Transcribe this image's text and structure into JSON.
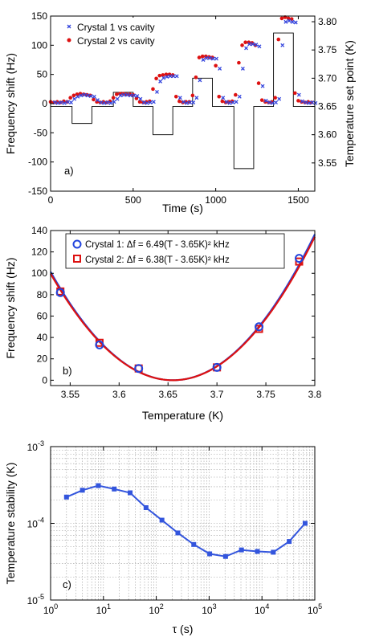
{
  "chart_data": [
    {
      "type": "scatter",
      "panel_label": "a)",
      "xlabel": "Time (s)",
      "ylabel": "Frequency shift (Hz)",
      "y2label": "Temperature set point (K)",
      "xlim": [
        0,
        1600
      ],
      "ylim": [
        -150,
        150
      ],
      "y2lim": [
        3.5,
        3.81
      ],
      "xticks": [
        0,
        500,
        1000,
        1500
      ],
      "yticks": [
        -150,
        -100,
        -50,
        0,
        50,
        100,
        150
      ],
      "y2ticks": [
        3.55,
        3.6,
        3.65,
        3.7,
        3.75,
        3.8
      ],
      "legend_position": "top-left",
      "series": [
        {
          "name": "Crystal 1 vs cavity",
          "marker": "x",
          "color": "#3344dd",
          "x": [
            0,
            20,
            40,
            60,
            80,
            100,
            120,
            140,
            160,
            180,
            200,
            220,
            240,
            260,
            280,
            300,
            320,
            340,
            360,
            380,
            400,
            420,
            440,
            460,
            480,
            500,
            520,
            540,
            560,
            580,
            600,
            620,
            640,
            660,
            680,
            700,
            720,
            740,
            760,
            780,
            800,
            820,
            840,
            860,
            880,
            900,
            920,
            940,
            960,
            980,
            1000,
            1020,
            1040,
            1060,
            1080,
            1100,
            1120,
            1140,
            1160,
            1180,
            1200,
            1220,
            1240,
            1260,
            1280,
            1300,
            1320,
            1340,
            1360,
            1380,
            1400,
            1420,
            1440,
            1460,
            1480,
            1500,
            1520,
            1540,
            1560,
            1580
          ],
          "y": [
            2,
            1,
            2,
            1,
            3,
            2,
            8,
            12,
            14,
            15,
            14,
            13,
            12,
            6,
            2,
            1,
            2,
            1,
            3,
            8,
            14,
            15,
            15,
            14,
            14,
            13,
            8,
            2,
            1,
            2,
            3,
            20,
            38,
            44,
            46,
            47,
            47,
            47,
            10,
            3,
            1,
            2,
            2,
            10,
            40,
            75,
            78,
            78,
            77,
            77,
            60,
            10,
            3,
            1,
            2,
            3,
            12,
            60,
            95,
            102,
            102,
            101,
            98,
            30,
            5,
            2,
            1,
            2,
            8,
            100,
            140,
            142,
            140,
            139,
            15,
            4,
            2,
            1,
            2,
            1
          ]
        },
        {
          "name": "Crystal 2 vs cavity",
          "marker": "dot",
          "color": "#dd1111",
          "x": [
            0,
            20,
            40,
            60,
            80,
            100,
            120,
            140,
            160,
            180,
            200,
            220,
            240,
            260,
            280,
            300,
            320,
            340,
            360,
            380,
            400,
            420,
            440,
            460,
            480,
            500,
            520,
            540,
            560,
            580,
            600,
            620,
            640,
            660,
            680,
            700,
            720,
            740,
            760,
            780,
            800,
            820,
            840,
            860,
            880,
            900,
            920,
            940,
            960,
            980,
            1000,
            1020,
            1040,
            1060,
            1080,
            1100,
            1120,
            1140,
            1160,
            1180,
            1200,
            1220,
            1240,
            1260,
            1280,
            1300,
            1320,
            1340,
            1360,
            1380,
            1400,
            1420,
            1440,
            1460,
            1480,
            1500,
            1520,
            1540,
            1560,
            1580
          ],
          "y": [
            3,
            2,
            3,
            2,
            4,
            3,
            10,
            14,
            16,
            17,
            16,
            15,
            14,
            7,
            3,
            2,
            3,
            2,
            4,
            10,
            16,
            17,
            17,
            16,
            16,
            15,
            9,
            3,
            2,
            3,
            4,
            25,
            43,
            48,
            49,
            50,
            50,
            49,
            12,
            4,
            2,
            3,
            3,
            14,
            45,
            79,
            81,
            81,
            80,
            79,
            65,
            12,
            4,
            2,
            3,
            4,
            15,
            70,
            100,
            105,
            105,
            104,
            100,
            35,
            6,
            3,
            2,
            3,
            10,
            110,
            146,
            148,
            146,
            145,
            18,
            5,
            3,
            2,
            3,
            2
          ]
        },
        {
          "name": "Temperature set point",
          "type": "step",
          "color": "#000000",
          "axis": "y2",
          "x": [
            0,
            130,
            250,
            380,
            500,
            620,
            740,
            860,
            980,
            1110,
            1230,
            1350,
            1470,
            1600
          ],
          "y": [
            3.65,
            3.62,
            3.65,
            3.675,
            3.65,
            3.6,
            3.65,
            3.7,
            3.65,
            3.54,
            3.65,
            3.78,
            3.65,
            3.65
          ]
        }
      ]
    },
    {
      "type": "scatter",
      "panel_label": "b)",
      "xlabel": "Temperature (K)",
      "ylabel": "Frequency shift (Hz)",
      "xlim": [
        3.53,
        3.8
      ],
      "ylim": [
        -5,
        140
      ],
      "xticks": [
        3.55,
        3.6,
        3.65,
        3.7,
        3.75,
        3.8
      ],
      "yticks": [
        0,
        20,
        40,
        60,
        80,
        100,
        120,
        140
      ],
      "legend_position": "top-left",
      "series": [
        {
          "name": "Crystal 1: Δf = 6.49(T - 3.65K)² kHz",
          "marker": "circle",
          "color": "#2244dd",
          "x": [
            3.54,
            3.58,
            3.62,
            3.7,
            3.743,
            3.784
          ],
          "y": [
            82,
            33,
            11,
            12,
            50,
            114
          ],
          "fit_coef": 6490
        },
        {
          "name": "Crystal 2: Δf = 6.38(T - 3.65K)² kHz",
          "marker": "square",
          "color": "#dd1111",
          "x": [
            3.54,
            3.58,
            3.62,
            3.7,
            3.743,
            3.784
          ],
          "y": [
            83,
            35,
            11,
            12,
            48,
            111
          ],
          "fit_coef": 6380
        }
      ]
    },
    {
      "type": "line",
      "panel_label": "c)",
      "xlabel": "τ (s)",
      "ylabel": "Temperature stability (K)",
      "xscale": "log",
      "yscale": "log",
      "xlim": [
        1,
        100000
      ],
      "ylim": [
        1e-05,
        0.001
      ],
      "xtick_labels": [
        [
          "10",
          "0"
        ],
        [
          "10",
          "1"
        ],
        [
          "10",
          "2"
        ],
        [
          "10",
          "3"
        ],
        [
          "10",
          "4"
        ],
        [
          "10",
          "5"
        ]
      ],
      "ytick_labels": [
        [
          "10",
          "-5"
        ],
        [
          "10",
          "-4"
        ],
        [
          "10",
          "-3"
        ]
      ],
      "grid": true,
      "series": [
        {
          "color": "#3355dd",
          "marker": "square",
          "x": [
            2,
            4,
            8,
            16,
            32,
            64,
            128,
            256,
            512,
            1024,
            2048,
            4096,
            8192,
            16384,
            32768,
            65536
          ],
          "y": [
            0.00022,
            0.00027,
            0.00031,
            0.00028,
            0.00025,
            0.00016,
            0.00011,
            7.5e-05,
            5.3e-05,
            4e-05,
            3.7e-05,
            4.5e-05,
            4.3e-05,
            4.2e-05,
            5.8e-05,
            0.0001
          ]
        }
      ]
    }
  ]
}
